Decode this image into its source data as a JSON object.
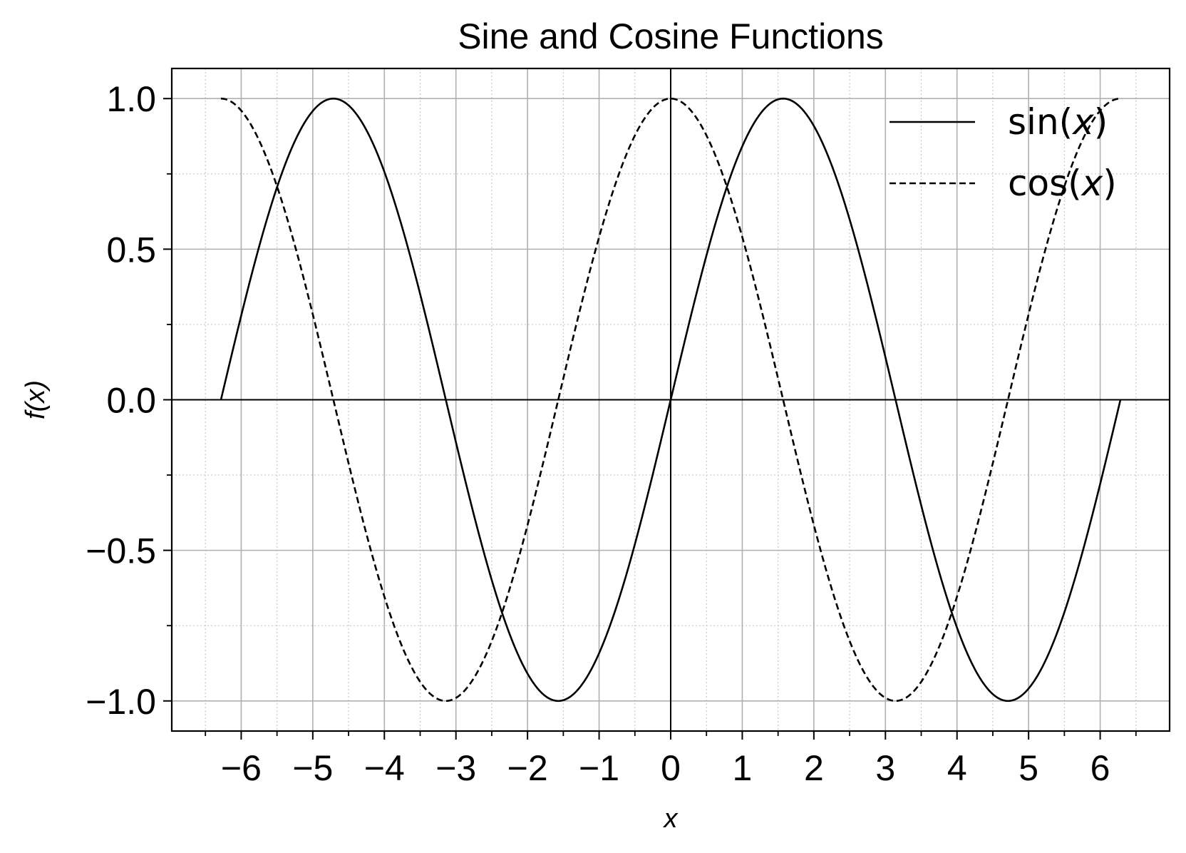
{
  "chart_data": {
    "type": "line",
    "title": "Sine and Cosine Functions",
    "xlabel": "x",
    "ylabel": "f(x)",
    "xlim": [
      -6.97,
      6.97
    ],
    "ylim": [
      -1.1,
      1.1
    ],
    "x_ticks": [
      -6,
      -5,
      -4,
      -3,
      -2,
      -1,
      0,
      1,
      2,
      3,
      4,
      5,
      6
    ],
    "x_tick_labels": [
      "−6",
      "−5",
      "−4",
      "−3",
      "−2",
      "−1",
      "0",
      "1",
      "2",
      "3",
      "4",
      "5",
      "6"
    ],
    "x_minor_step": 0.5,
    "y_ticks": [
      -1.0,
      -0.5,
      0.0,
      0.5,
      1.0
    ],
    "y_tick_labels": [
      "−1.0",
      "−0.5",
      "0.0",
      "0.5",
      "1.0"
    ],
    "y_minor_step": 0.25,
    "x_domain": [
      -6.283185,
      6.283185
    ],
    "grid": {
      "major": true,
      "minor": true,
      "major_color": "#b0b0b0",
      "minor_color": "#c8c8c8"
    },
    "reference_lines": {
      "x0": true,
      "y0": true
    },
    "legend": {
      "placement": "upper-right"
    },
    "series": [
      {
        "name": "sin(x)",
        "func": "sin",
        "style": "solid",
        "color": "#000000",
        "legend": {
          "pre": "sin(",
          "var": "x",
          "post": ")"
        }
      },
      {
        "name": "cos(x)",
        "func": "cos",
        "style": "dashed",
        "color": "#000000",
        "legend": {
          "pre": "cos(",
          "var": "x",
          "post": ")"
        }
      }
    ]
  }
}
